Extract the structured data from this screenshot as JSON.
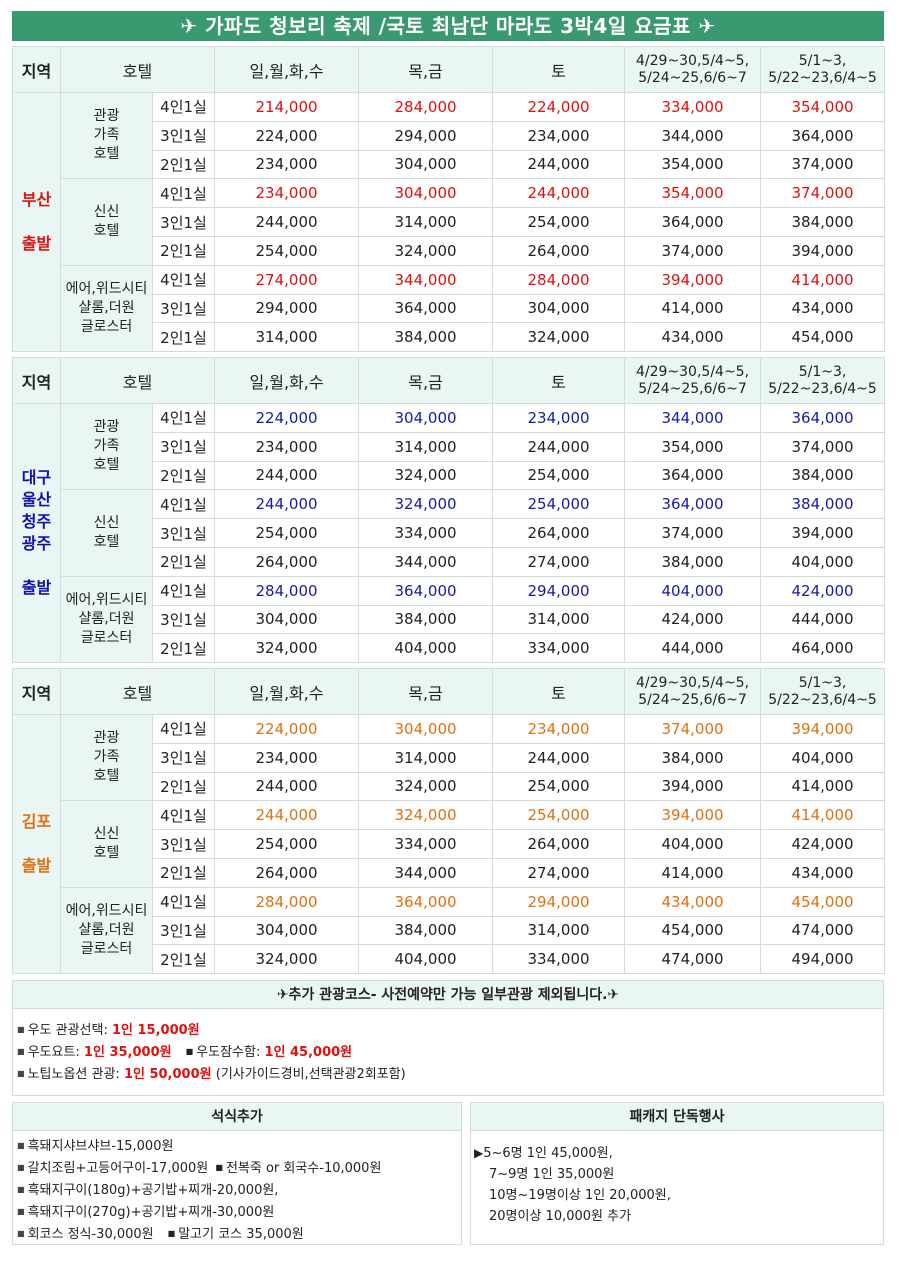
{
  "title": "✈ 가파도 청보리 축제 /국토 최남단 마라도 3박4일 요금표 ✈",
  "headers": {
    "region": "지역",
    "hotel": "호텔",
    "col1": "일,월,화,수",
    "col2": "목,금",
    "col3": "토",
    "col4_line1": "4/29~30,5/4~5,",
    "col4_line2": "5/24~25,6/6~7",
    "col5_line1": "5/1~3,",
    "col5_line2": "5/22~23,6/4~5"
  },
  "hotels": {
    "h1": [
      "관광",
      "가족",
      "호텔"
    ],
    "h2": [
      "신신",
      "호텔"
    ],
    "h3": [
      "에어,위드시티",
      "샬롬,더원",
      "글로스터"
    ]
  },
  "rooms": [
    "4인1실",
    "3인1실",
    "2인1실"
  ],
  "sections": [
    {
      "region": [
        "부산"
      ],
      "departure": "출발",
      "rows": [
        [
          "214,000",
          "284,000",
          "224,000",
          "334,000",
          "354,000"
        ],
        [
          "224,000",
          "294,000",
          "234,000",
          "344,000",
          "364,000"
        ],
        [
          "234,000",
          "304,000",
          "244,000",
          "354,000",
          "374,000"
        ],
        [
          "234,000",
          "304,000",
          "244,000",
          "354,000",
          "374,000"
        ],
        [
          "244,000",
          "314,000",
          "254,000",
          "364,000",
          "384,000"
        ],
        [
          "254,000",
          "324,000",
          "264,000",
          "374,000",
          "394,000"
        ],
        [
          "274,000",
          "344,000",
          "284,000",
          "394,000",
          "414,000"
        ],
        [
          "294,000",
          "364,000",
          "304,000",
          "414,000",
          "434,000"
        ],
        [
          "314,000",
          "384,000",
          "324,000",
          "434,000",
          "454,000"
        ]
      ]
    },
    {
      "region": [
        "대구",
        "울산",
        "청주",
        "광주"
      ],
      "departure": "출발",
      "rows": [
        [
          "224,000",
          "304,000",
          "234,000",
          "344,000",
          "364,000"
        ],
        [
          "234,000",
          "314,000",
          "244,000",
          "354,000",
          "374,000"
        ],
        [
          "244,000",
          "324,000",
          "254,000",
          "364,000",
          "384,000"
        ],
        [
          "244,000",
          "324,000",
          "254,000",
          "364,000",
          "384,000"
        ],
        [
          "254,000",
          "334,000",
          "264,000",
          "374,000",
          "394,000"
        ],
        [
          "264,000",
          "344,000",
          "274,000",
          "384,000",
          "404,000"
        ],
        [
          "284,000",
          "364,000",
          "294,000",
          "404,000",
          "424,000"
        ],
        [
          "304,000",
          "384,000",
          "314,000",
          "424,000",
          "444,000"
        ],
        [
          "324,000",
          "404,000",
          "334,000",
          "444,000",
          "464,000"
        ]
      ]
    },
    {
      "region": [
        "김포"
      ],
      "departure": "출발",
      "rows": [
        [
          "224,000",
          "304,000",
          "234,000",
          "374,000",
          "394,000"
        ],
        [
          "234,000",
          "314,000",
          "244,000",
          "384,000",
          "404,000"
        ],
        [
          "244,000",
          "324,000",
          "254,000",
          "394,000",
          "414,000"
        ],
        [
          "244,000",
          "324,000",
          "254,000",
          "394,000",
          "414,000"
        ],
        [
          "254,000",
          "334,000",
          "264,000",
          "404,000",
          "424,000"
        ],
        [
          "264,000",
          "344,000",
          "274,000",
          "414,000",
          "434,000"
        ],
        [
          "284,000",
          "364,000",
          "294,000",
          "434,000",
          "454,000"
        ],
        [
          "304,000",
          "384,000",
          "314,000",
          "454,000",
          "474,000"
        ],
        [
          "324,000",
          "404,000",
          "334,000",
          "474,000",
          "494,000"
        ]
      ]
    }
  ],
  "tour": {
    "header": "✈추가 관광코스- 사전예약만 가능 일부관광 제외됩니다.✈",
    "line1_label": "우도 관광선택: ",
    "line1_price": "1인 15,000원",
    "line2a_label": "우도요트: ",
    "line2a_price": "1인 35,000원",
    "line2b_label": "우도잠수함: ",
    "line2b_price": "1인 45,000원",
    "line3_label": "노팁노옵션 관광: ",
    "line3_price": "1인 50,000원",
    "line3_note": " (기사가이드경비,선택관광2회포함)"
  },
  "meals": {
    "header": "석식추가",
    "item1": "흑돼지샤브샤브-15,000원",
    "item2a": "갈치조림+고등어구이-17,000원",
    "item2b": "전복죽 or 회국수-10,000원",
    "item3": "흑돼지구이(180g)+공기밥+찌개-20,000원,",
    "item4": "흑돼지구이(270g)+공기밥+찌개-30,000원",
    "item5a": "회코스 정식-30,000원",
    "item5b": "말고기 코스 35,000원"
  },
  "package": {
    "header": "패캐지 단독행사",
    "arrow": "▶",
    "line1": "5~6명 1인 45,000원,",
    "line2": "7~9명 1인 35,000원",
    "line3": "10명~19명이상 1인 20,000원,",
    "line4": "20명이상 10,000원 추가"
  },
  "colors": {
    "title_bg": "#3a9970",
    "header_bg": "#eaf6f3",
    "busan": "#e01010",
    "daegu": "#1818b0",
    "gimpo": "#e07010"
  }
}
